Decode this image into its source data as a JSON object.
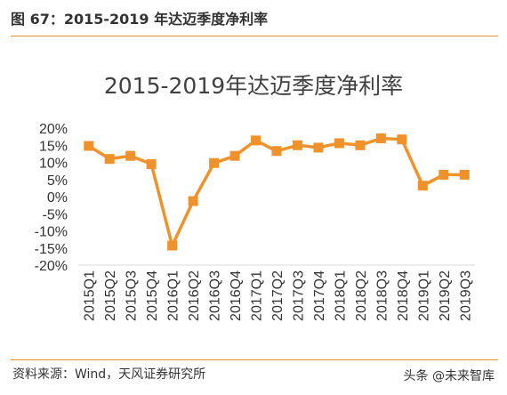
{
  "figure": {
    "header": "图 67：2015-2019 年达迈季度净利率",
    "source": "资料来源：Wind，天风证券研究所",
    "watermark": "头条 @未来智库"
  },
  "colors": {
    "accent": "#e8912c",
    "series": "#f0922b",
    "axis": "#d9d9d9"
  },
  "chart_data": {
    "type": "line",
    "title": "2015-2019年达迈季度净利率",
    "xlabel": "",
    "ylabel": "",
    "ylim": [
      -20,
      20
    ],
    "yticks": [
      20,
      15,
      10,
      5,
      0,
      -5,
      -10,
      -15,
      -20
    ],
    "ytick_labels": [
      "20%",
      "15%",
      "10%",
      "5%",
      "0%",
      "-5%",
      "-10%",
      "-15%",
      "-20%"
    ],
    "grid": false,
    "legend": "none",
    "marker": "square",
    "categories": [
      "2015Q1",
      "2015Q2",
      "2015Q3",
      "2015Q4",
      "2016Q1",
      "2016Q2",
      "2016Q3",
      "2016Q4",
      "2017Q1",
      "2017Q2",
      "2017Q3",
      "2017Q4",
      "2018Q1",
      "2018Q2",
      "2018Q3",
      "2018Q4",
      "2019Q1",
      "2019Q2",
      "2019Q3"
    ],
    "series": [
      {
        "name": "",
        "values": [
          14.8,
          11.0,
          11.9,
          9.5,
          -14.3,
          -1.3,
          9.8,
          11.9,
          16.4,
          13.3,
          15.0,
          14.3,
          15.6,
          15.0,
          17.0,
          16.7,
          3.2,
          6.4,
          6.4
        ]
      }
    ]
  }
}
